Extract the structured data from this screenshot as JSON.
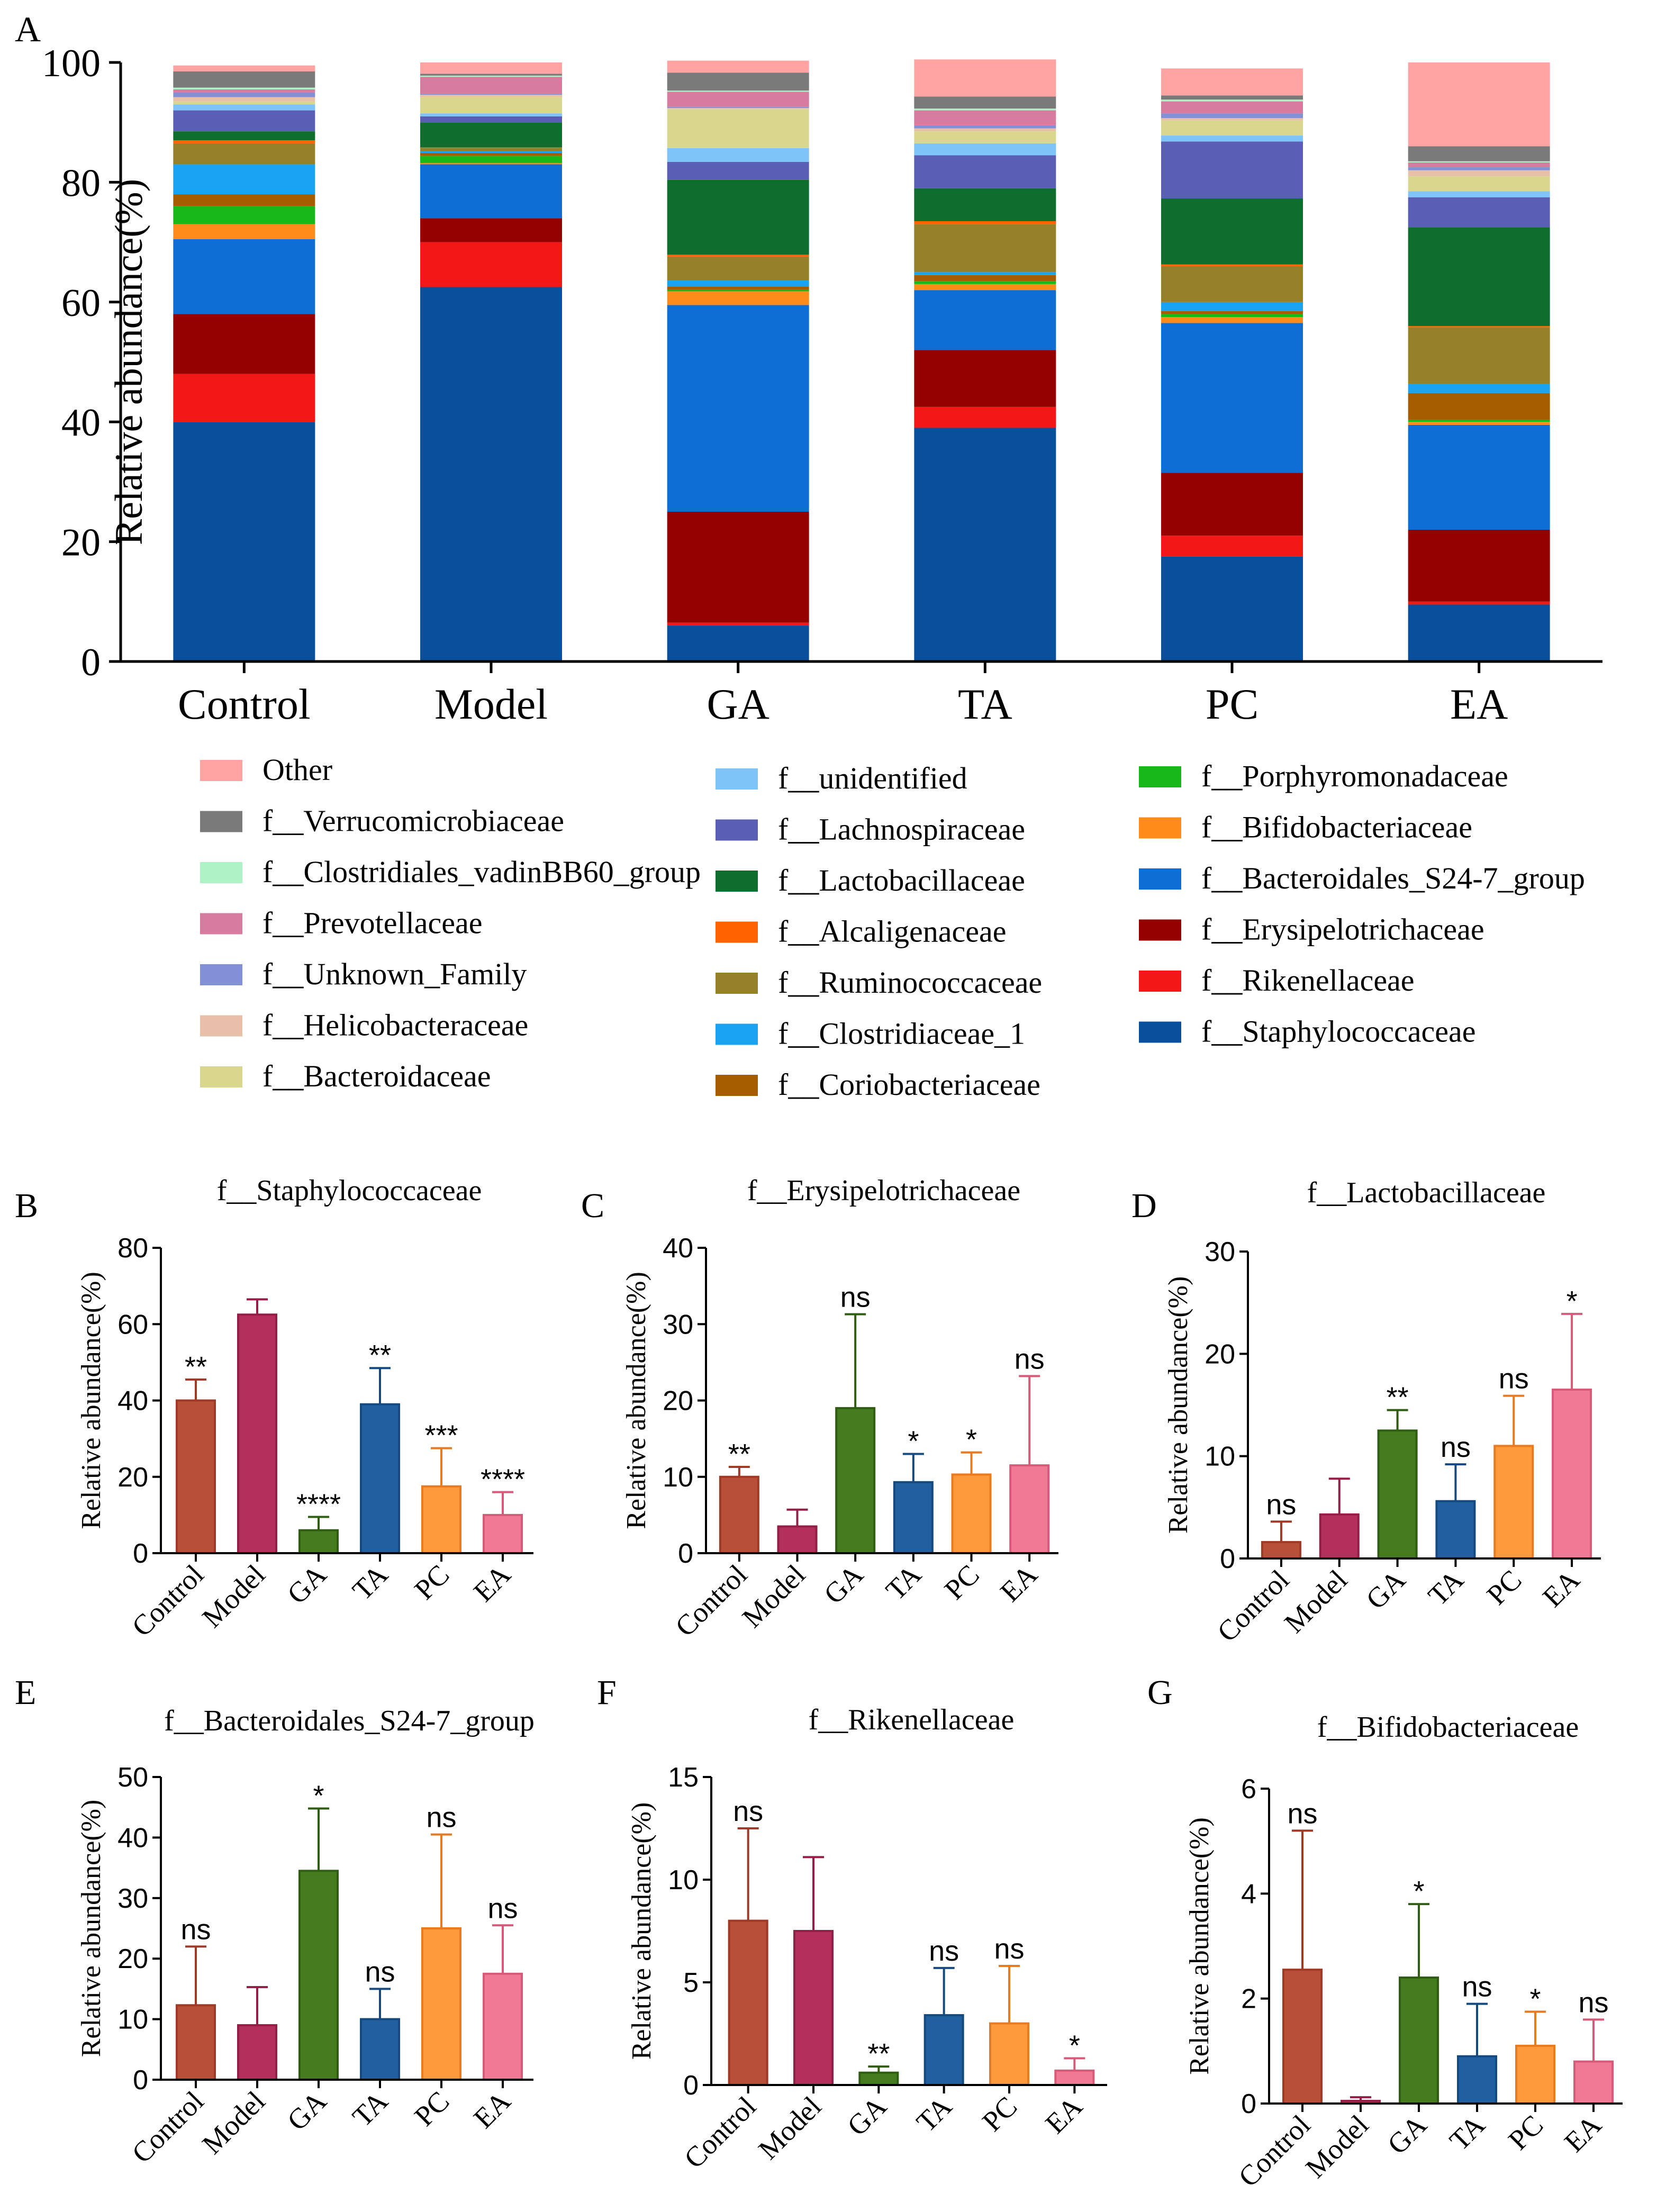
{
  "panel_labels": [
    "A",
    "B",
    "C",
    "D",
    "E",
    "F",
    "G"
  ],
  "chart_data": [
    {
      "type": "bar",
      "stacked": true,
      "panel": "A",
      "title": "",
      "xlabel": "",
      "ylabel": "Relative abundance(%)",
      "ylim": [
        0,
        100
      ],
      "yticks": [
        0,
        20,
        40,
        60,
        80,
        100
      ],
      "categories": [
        "Control",
        "Model",
        "GA",
        "TA",
        "PC",
        "EA"
      ],
      "series": [
        {
          "name": "f__Staphylococcaceae",
          "color": "#0a4f9c",
          "values": [
            40,
            62.5,
            6,
            39,
            17.5,
            9.5
          ]
        },
        {
          "name": "f__Rikenellaceae",
          "color": "#f31716",
          "values": [
            8,
            7.5,
            0.5,
            3.5,
            3.5,
            0.5
          ]
        },
        {
          "name": "f__Erysipelotrichaceae",
          "color": "#950000",
          "values": [
            10,
            4,
            18.5,
            9.5,
            10.5,
            12
          ]
        },
        {
          "name": "f__Bacteroidales_S24-7_group",
          "color": "#0f6ed3",
          "values": [
            12.5,
            9,
            34.5,
            10,
            25,
            17.5
          ]
        },
        {
          "name": "f__Bifidobacteriaceae",
          "color": "#ff8c1a",
          "values": [
            2.5,
            0.2,
            2.3,
            1,
            1,
            0.5
          ]
        },
        {
          "name": "f__Porphyromonadaceae",
          "color": "#18b818",
          "values": [
            3,
            1.2,
            0.3,
            0.5,
            0.5,
            0.3
          ]
        },
        {
          "name": "f__Coriobacteriaceae",
          "color": "#a65d00",
          "values": [
            2,
            0.5,
            0.5,
            1,
            0.5,
            4.5
          ]
        },
        {
          "name": "f__Clostridiaceae_1",
          "color": "#1aa3f0",
          "values": [
            5,
            0.3,
            1,
            0.5,
            1.5,
            1.5
          ]
        },
        {
          "name": "f__Ruminococcaceae",
          "color": "#958128",
          "values": [
            3.5,
            0.5,
            4,
            8,
            6,
            9.5
          ]
        },
        {
          "name": "f__Alcaligenaceae",
          "color": "#ff6200",
          "values": [
            0.5,
            0.1,
            0.3,
            0.5,
            0.3,
            0.2
          ]
        },
        {
          "name": "f__Lactobacillaceae",
          "color": "#0e6e2e",
          "values": [
            1.5,
            4.2,
            12.5,
            5.5,
            11,
            16.5
          ]
        },
        {
          "name": "f__Lachnospiraceae",
          "color": "#5a5fb5",
          "values": [
            3.5,
            1,
            3,
            5.5,
            9.5,
            5
          ]
        },
        {
          "name": "f__unidentified",
          "color": "#7fc4f8",
          "values": [
            1,
            0.5,
            2.3,
            2,
            1,
            1
          ]
        },
        {
          "name": "f__Bacteroidaceae",
          "color": "#d9d78e",
          "values": [
            0.5,
            2.8,
            6.5,
            2,
            2.5,
            2.5
          ]
        },
        {
          "name": "f__Helicobacteraceae",
          "color": "#e8bfa8",
          "values": [
            0.7,
            0.3,
            0.2,
            0.5,
            0.4,
            1
          ]
        },
        {
          "name": "f__Unknown_Family",
          "color": "#8290d6",
          "values": [
            0.8,
            0.2,
            0.2,
            0.5,
            0.8,
            0.5
          ]
        },
        {
          "name": "f__Prevotellaceae",
          "color": "#d77b9f",
          "values": [
            0.5,
            2.8,
            2.5,
            2.5,
            2,
            0.8
          ]
        },
        {
          "name": "f__Clostridiales_vadinBB60_group",
          "color": "#aef2c6",
          "values": [
            0.3,
            0.2,
            0.2,
            0.3,
            0.3,
            0.2
          ]
        },
        {
          "name": "f__Verrucomicrobiaceae",
          "color": "#7a7a7a",
          "values": [
            2.7,
            0.3,
            3,
            2,
            0.7,
            2.5
          ]
        },
        {
          "name": "Other",
          "color": "#ffa3a3",
          "values": [
            1,
            1.9,
            2,
            6.2,
            4.5,
            14
          ]
        }
      ]
    },
    {
      "type": "bar",
      "panel": "B",
      "title": "f__Staphylococcaceae",
      "xlabel": "",
      "ylabel": "Relative abundance(%)",
      "ylim": [
        0,
        80
      ],
      "yticks": [
        0,
        20,
        40,
        60,
        80
      ],
      "categories": [
        "Control",
        "Model",
        "GA",
        "TA",
        "PC",
        "EA"
      ],
      "values": [
        40,
        62.5,
        6,
        39,
        17.5,
        10
      ],
      "errors": [
        5.5,
        4,
        3.5,
        9.5,
        10,
        6
      ],
      "significance": [
        "**",
        "",
        "****",
        "**",
        "***",
        "****"
      ]
    },
    {
      "type": "bar",
      "panel": "C",
      "title": "f__Erysipelotrichaceae",
      "xlabel": "",
      "ylabel": "Relative abundance(%)",
      "ylim": [
        0,
        40
      ],
      "yticks": [
        0,
        10,
        20,
        30,
        40
      ],
      "categories": [
        "Control",
        "Model",
        "GA",
        "TA",
        "PC",
        "EA"
      ],
      "values": [
        10,
        3.5,
        19,
        9.3,
        10.3,
        11.5
      ],
      "errors": [
        1.3,
        2.2,
        12.3,
        3.7,
        2.9,
        11.7
      ],
      "significance": [
        "**",
        "",
        "ns",
        "*",
        "*",
        "ns"
      ]
    },
    {
      "type": "bar",
      "panel": "D",
      "title": "f__Lactobacillaceae",
      "xlabel": "",
      "ylabel": "Relative abundance(%)",
      "ylim": [
        0,
        30
      ],
      "yticks": [
        0,
        10,
        20,
        30
      ],
      "categories": [
        "Control",
        "Model",
        "GA",
        "TA",
        "PC",
        "EA"
      ],
      "values": [
        1.6,
        4.3,
        12.5,
        5.6,
        11,
        16.5
      ],
      "errors": [
        2,
        3.5,
        2,
        3.6,
        4.9,
        7.4
      ],
      "significance": [
        "ns",
        "",
        "**",
        "ns",
        "ns",
        "*"
      ]
    },
    {
      "type": "bar",
      "panel": "E",
      "title": "f__Bacteroidales_S24-7_group",
      "xlabel": "",
      "ylabel": "Relative abundance(%)",
      "ylim": [
        0,
        50
      ],
      "yticks": [
        0,
        10,
        20,
        30,
        40,
        50
      ],
      "categories": [
        "Control",
        "Model",
        "GA",
        "TA",
        "PC",
        "EA"
      ],
      "values": [
        12.3,
        9,
        34.5,
        10,
        25,
        17.5
      ],
      "errors": [
        9.7,
        6.3,
        10.3,
        5,
        15.5,
        8
      ],
      "significance": [
        "ns",
        "",
        "*",
        "ns",
        "ns",
        "ns"
      ]
    },
    {
      "type": "bar",
      "panel": "F",
      "title": "f__Rikenellaceae",
      "xlabel": "",
      "ylabel": "Relative abundance(%)",
      "ylim": [
        0,
        15
      ],
      "yticks": [
        0,
        5,
        10,
        15
      ],
      "categories": [
        "Control",
        "Model",
        "GA",
        "TA",
        "PC",
        "EA"
      ],
      "values": [
        8,
        7.5,
        0.6,
        3.4,
        3,
        0.7
      ],
      "errors": [
        4.5,
        3.6,
        0.3,
        2.3,
        2.8,
        0.6
      ],
      "significance": [
        "ns",
        "",
        "**",
        "ns",
        "ns",
        "*"
      ]
    },
    {
      "type": "bar",
      "panel": "G",
      "title": "f__Bifidobacteriaceae",
      "xlabel": "",
      "ylabel": "Relative abundance(%)",
      "ylim": [
        0,
        6
      ],
      "yticks": [
        0,
        2,
        4,
        6
      ],
      "categories": [
        "Control",
        "Model",
        "GA",
        "TA",
        "PC",
        "EA"
      ],
      "values": [
        2.55,
        0.05,
        2.4,
        0.9,
        1.1,
        0.8
      ],
      "errors": [
        2.65,
        0.07,
        1.4,
        1,
        0.65,
        0.8
      ],
      "significance": [
        "ns",
        "",
        "*",
        "ns",
        "*",
        "ns"
      ]
    }
  ],
  "panel_bar_colors": {
    "Control": "#b84f38",
    "Model": "#b3305c",
    "GA": "#457a1f",
    "TA": "#215f9e",
    "PC": "#ff9a3c",
    "EA": "#f07a96"
  },
  "panel_err_colors": {
    "Control": "#9e3a26",
    "Model": "#951e47",
    "GA": "#2f5e12",
    "TA": "#154a80",
    "PC": "#e87a20",
    "EA": "#d85a78"
  }
}
